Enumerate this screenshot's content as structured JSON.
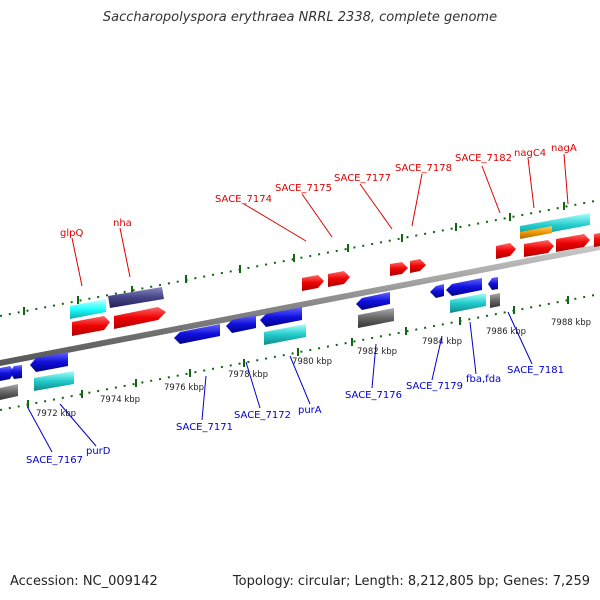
{
  "title": "Saccharopolyspora erythraea NRRL 2338, complete genome",
  "footer": {
    "accession": "Accession: NC_009142",
    "summary": "Topology: circular; Length: 8,212,805 bp; Genes: 7,259"
  },
  "colors": {
    "forward_gene": "#ee0000",
    "reverse_gene": "#1010dd",
    "cyan_feature": "#22cccc",
    "grey_feature": "#666666",
    "orange_feature": "#ee9900",
    "slate_feature": "#444488",
    "backbone": "#888888"
  },
  "top_labels": [
    "glpQ",
    "nha",
    "SACE_7174",
    "SACE_7175",
    "SACE_7177",
    "SACE_7178",
    "SACE_7182",
    "nagC4",
    "nagA"
  ],
  "bottom_labels": [
    "SACE_7167",
    "purD",
    "SACE_7171",
    "SACE_7172",
    "purA",
    "SACE_7176",
    "SACE_7179",
    "fba,fda",
    "SACE_7181"
  ],
  "tick_labels": [
    "7972 kbp",
    "7974 kbp",
    "7976 kbp",
    "7978 kbp",
    "7980 kbp",
    "7982 kbp",
    "7984 kbp",
    "7986 kbp",
    "7988 kbp"
  ]
}
